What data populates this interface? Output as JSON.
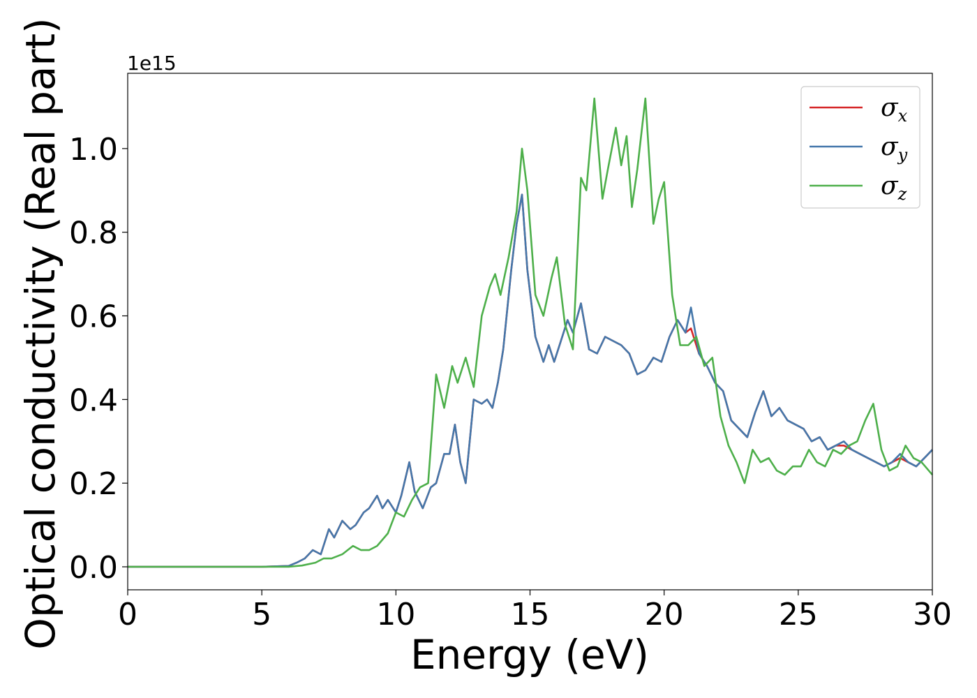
{
  "chart_data": {
    "type": "line",
    "title": "",
    "xlabel": "Energy (eV)",
    "ylabel": "Optical conductivity (Real part)",
    "y_offset_label": "1e15",
    "xlim": [
      0,
      30
    ],
    "ylim": [
      -0.055,
      1.18
    ],
    "x_ticks": [
      0,
      5,
      10,
      15,
      20,
      25,
      30
    ],
    "x_tick_labels": [
      "0",
      "5",
      "10",
      "15",
      "20",
      "25",
      "30"
    ],
    "y_ticks": [
      0.0,
      0.2,
      0.4,
      0.6,
      0.8,
      1.0
    ],
    "y_tick_labels": [
      "0.0",
      "0.2",
      "0.4",
      "0.6",
      "0.8",
      "1.0"
    ],
    "grid": false,
    "legend_position": "top-right",
    "series": [
      {
        "name": "σx",
        "legend_symbol": "σ",
        "legend_subscript": "x",
        "color": "#d62728",
        "x": [
          0,
          5,
          6,
          6.3,
          6.6,
          6.9,
          7.2,
          7.5,
          7.7,
          8,
          8.3,
          8.5,
          8.8,
          9,
          9.3,
          9.5,
          9.7,
          10,
          10.2,
          10.5,
          10.7,
          11,
          11.3,
          11.5,
          11.8,
          12,
          12.2,
          12.4,
          12.6,
          12.9,
          13.2,
          13.4,
          13.6,
          13.8,
          14,
          14.3,
          14.5,
          14.7,
          14.9,
          15.2,
          15.5,
          15.7,
          15.9,
          16.1,
          16.4,
          16.6,
          16.9,
          17.2,
          17.5,
          17.8,
          18.1,
          18.4,
          18.7,
          19,
          19.3,
          19.6,
          19.9,
          20.2,
          20.5,
          20.8,
          21,
          21.3,
          21.6,
          21.9,
          22.2,
          22.5,
          22.8,
          23.1,
          23.4,
          23.7,
          24,
          24.3,
          24.6,
          24.9,
          25.2,
          25.5,
          25.8,
          26.1,
          26.4,
          26.7,
          27,
          27.3,
          27.6,
          27.9,
          28.2,
          28.5,
          28.8,
          29.1,
          29.4,
          29.7,
          30
        ],
        "values": [
          0,
          0,
          0.002,
          0.01,
          0.02,
          0.04,
          0.03,
          0.09,
          0.07,
          0.11,
          0.09,
          0.1,
          0.13,
          0.14,
          0.17,
          0.14,
          0.16,
          0.13,
          0.17,
          0.25,
          0.18,
          0.14,
          0.19,
          0.2,
          0.27,
          0.27,
          0.34,
          0.25,
          0.2,
          0.4,
          0.39,
          0.4,
          0.38,
          0.44,
          0.52,
          0.71,
          0.82,
          0.89,
          0.71,
          0.55,
          0.49,
          0.53,
          0.49,
          0.53,
          0.59,
          0.56,
          0.63,
          0.52,
          0.51,
          0.55,
          0.54,
          0.53,
          0.51,
          0.46,
          0.47,
          0.5,
          0.49,
          0.55,
          0.59,
          0.56,
          0.57,
          0.51,
          0.48,
          0.44,
          0.42,
          0.35,
          0.33,
          0.31,
          0.37,
          0.42,
          0.36,
          0.38,
          0.35,
          0.34,
          0.33,
          0.3,
          0.31,
          0.28,
          0.29,
          0.29,
          0.28,
          0.27,
          0.26,
          0.25,
          0.24,
          0.25,
          0.26,
          0.25,
          0.24,
          0.26,
          0.28
        ]
      },
      {
        "name": "σy",
        "legend_symbol": "σ",
        "legend_subscript": "y",
        "color": "#4477aa",
        "x": [
          0,
          5,
          6,
          6.3,
          6.6,
          6.9,
          7.2,
          7.5,
          7.7,
          8,
          8.3,
          8.5,
          8.8,
          9,
          9.3,
          9.5,
          9.7,
          10,
          10.2,
          10.5,
          10.7,
          11,
          11.3,
          11.5,
          11.8,
          12,
          12.2,
          12.4,
          12.6,
          12.9,
          13.2,
          13.4,
          13.6,
          13.8,
          14,
          14.3,
          14.5,
          14.7,
          14.9,
          15.2,
          15.5,
          15.7,
          15.9,
          16.1,
          16.4,
          16.6,
          16.9,
          17.2,
          17.5,
          17.8,
          18.1,
          18.4,
          18.7,
          19,
          19.3,
          19.6,
          19.9,
          20.2,
          20.5,
          20.8,
          21,
          21.3,
          21.6,
          21.9,
          22.2,
          22.5,
          22.8,
          23.1,
          23.4,
          23.7,
          24,
          24.3,
          24.6,
          24.9,
          25.2,
          25.5,
          25.8,
          26.1,
          26.4,
          26.7,
          27,
          27.3,
          27.6,
          27.9,
          28.2,
          28.5,
          28.8,
          29.1,
          29.4,
          29.7,
          30
        ],
        "values": [
          0,
          0,
          0.002,
          0.01,
          0.02,
          0.04,
          0.03,
          0.09,
          0.07,
          0.11,
          0.09,
          0.1,
          0.13,
          0.14,
          0.17,
          0.14,
          0.16,
          0.13,
          0.17,
          0.25,
          0.18,
          0.14,
          0.19,
          0.2,
          0.27,
          0.27,
          0.34,
          0.25,
          0.2,
          0.4,
          0.39,
          0.4,
          0.38,
          0.44,
          0.52,
          0.71,
          0.82,
          0.89,
          0.71,
          0.55,
          0.49,
          0.53,
          0.49,
          0.53,
          0.59,
          0.56,
          0.63,
          0.52,
          0.51,
          0.55,
          0.54,
          0.53,
          0.51,
          0.46,
          0.47,
          0.5,
          0.49,
          0.55,
          0.59,
          0.56,
          0.62,
          0.51,
          0.48,
          0.44,
          0.42,
          0.35,
          0.33,
          0.31,
          0.37,
          0.42,
          0.36,
          0.38,
          0.35,
          0.34,
          0.33,
          0.3,
          0.31,
          0.28,
          0.29,
          0.3,
          0.28,
          0.27,
          0.26,
          0.25,
          0.24,
          0.25,
          0.27,
          0.25,
          0.24,
          0.26,
          0.28
        ]
      },
      {
        "name": "σz",
        "legend_symbol": "σ",
        "legend_subscript": "z",
        "color": "#4daf4a",
        "x": [
          0,
          5,
          6,
          6.5,
          7,
          7.3,
          7.6,
          8,
          8.4,
          8.7,
          9,
          9.3,
          9.7,
          10,
          10.3,
          10.6,
          10.9,
          11.2,
          11.5,
          11.8,
          12.1,
          12.3,
          12.6,
          12.9,
          13.2,
          13.5,
          13.7,
          13.9,
          14.2,
          14.5,
          14.7,
          14.9,
          15.2,
          15.5,
          15.8,
          16,
          16.3,
          16.6,
          16.9,
          17.1,
          17.4,
          17.7,
          17.9,
          18.2,
          18.4,
          18.6,
          18.8,
          19,
          19.3,
          19.6,
          19.8,
          20,
          20.3,
          20.6,
          20.9,
          21.2,
          21.5,
          21.8,
          22.1,
          22.4,
          22.7,
          23,
          23.3,
          23.6,
          23.9,
          24.2,
          24.5,
          24.8,
          25.1,
          25.4,
          25.7,
          26,
          26.3,
          26.6,
          26.9,
          27.2,
          27.5,
          27.8,
          28.1,
          28.4,
          28.7,
          29,
          29.3,
          29.6,
          30
        ],
        "values": [
          0,
          0,
          0,
          0.003,
          0.01,
          0.02,
          0.02,
          0.03,
          0.05,
          0.04,
          0.04,
          0.05,
          0.08,
          0.13,
          0.12,
          0.16,
          0.19,
          0.2,
          0.46,
          0.38,
          0.48,
          0.44,
          0.5,
          0.43,
          0.6,
          0.67,
          0.7,
          0.65,
          0.74,
          0.85,
          1.0,
          0.9,
          0.65,
          0.6,
          0.69,
          0.74,
          0.58,
          0.52,
          0.93,
          0.9,
          1.12,
          0.88,
          0.95,
          1.05,
          0.96,
          1.03,
          0.86,
          0.95,
          1.12,
          0.82,
          0.88,
          0.92,
          0.65,
          0.53,
          0.53,
          0.55,
          0.48,
          0.5,
          0.36,
          0.29,
          0.25,
          0.2,
          0.28,
          0.25,
          0.26,
          0.23,
          0.22,
          0.24,
          0.24,
          0.28,
          0.25,
          0.24,
          0.28,
          0.27,
          0.29,
          0.3,
          0.35,
          0.39,
          0.28,
          0.23,
          0.24,
          0.29,
          0.26,
          0.25,
          0.22
        ]
      }
    ]
  }
}
